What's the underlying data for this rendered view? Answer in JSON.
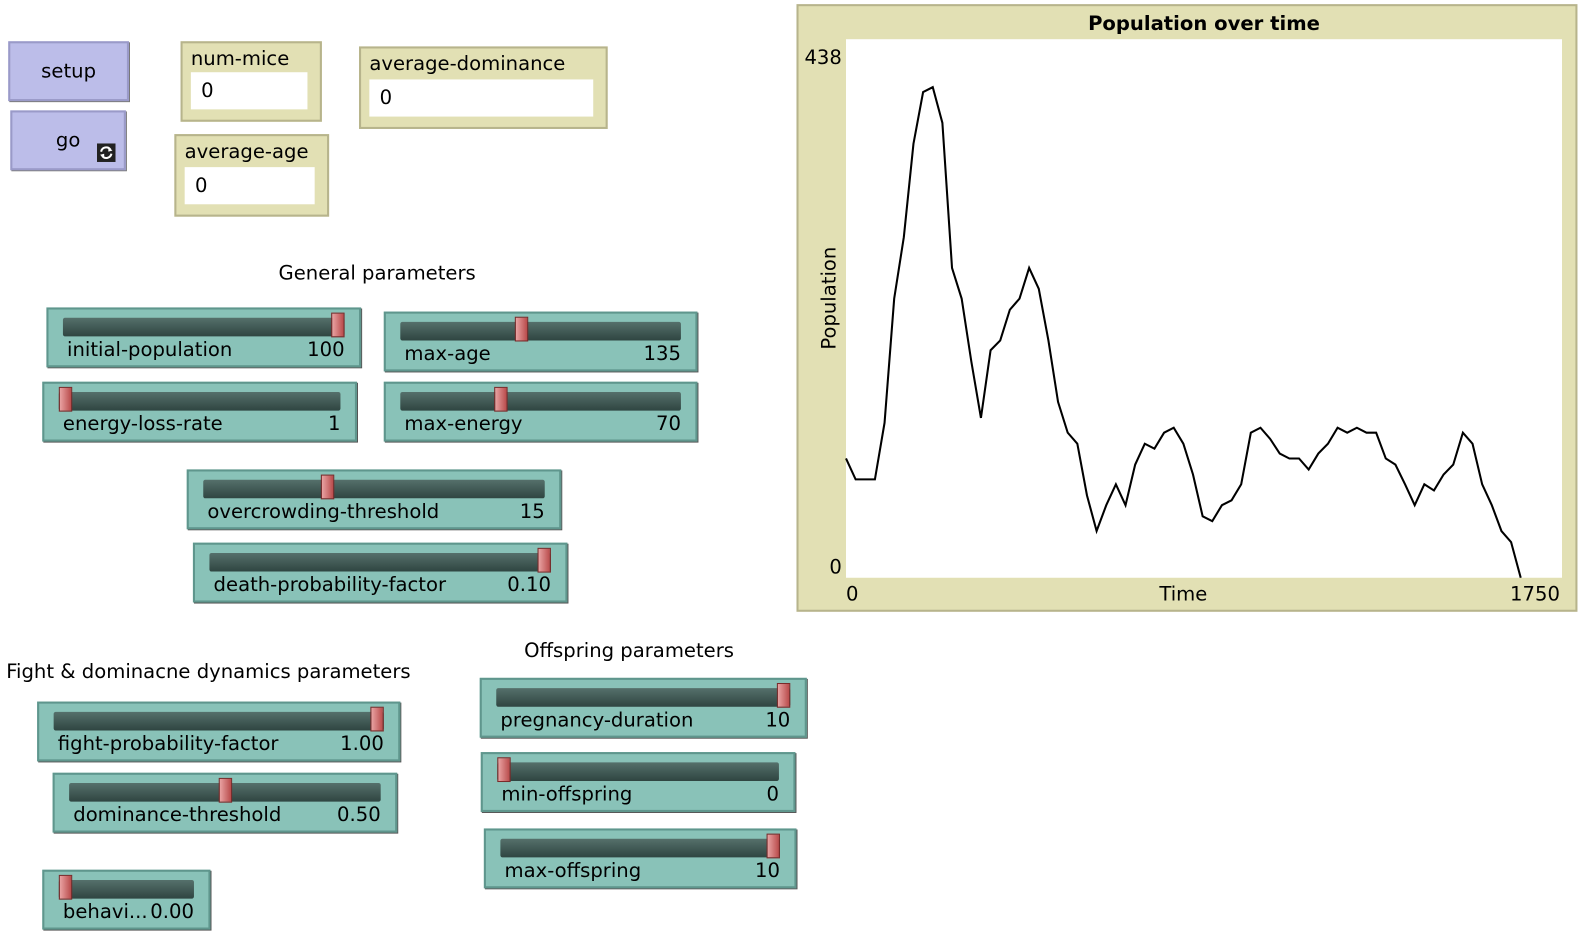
{
  "buttons": [
    {
      "label": "setup"
    },
    {
      "label": "go"
    }
  ],
  "monitors": [
    {
      "label": "num-mice",
      "value": "0"
    },
    {
      "label": "average-age",
      "value": "0"
    },
    {
      "label": "average-dominance",
      "value": "0"
    }
  ],
  "notes": [
    "General parameters",
    "Fight & dominacne dynamics parameters",
    "Offspring parameters"
  ],
  "sliders": [
    {
      "label": "initial-population",
      "value": "100"
    },
    {
      "label": "max-age",
      "value": "135"
    },
    {
      "label": "energy-loss-rate",
      "value": "1"
    },
    {
      "label": "max-energy",
      "value": "70"
    },
    {
      "label": "overcrowding-threshold",
      "value": "15"
    },
    {
      "label": "death-probability-factor",
      "value": "0.10"
    },
    {
      "label": "fight-probability-factor",
      "value": "1.00"
    },
    {
      "label": "dominance-threshold",
      "value": "0.50"
    },
    {
      "label": "behavi...",
      "value": "0.00"
    },
    {
      "label": "pregnancy-duration",
      "value": "10"
    },
    {
      "label": "min-offspring",
      "value": "0"
    },
    {
      "label": "max-offspring",
      "value": "10"
    }
  ],
  "chart_data": {
    "type": "line",
    "title": "Population over time",
    "x_label": "Time",
    "y_label": "Population",
    "color": "#000000",
    "x": [
      0,
      25,
      50,
      75,
      100,
      125,
      150,
      175,
      200,
      225,
      250,
      275,
      300,
      325,
      350,
      375,
      400,
      425,
      450,
      475,
      500,
      525,
      550,
      575,
      600,
      625,
      650,
      675,
      700,
      725,
      750,
      775,
      800,
      825,
      850,
      875,
      900,
      925,
      950,
      975,
      1000,
      1025,
      1050,
      1075,
      1100,
      1125,
      1150,
      1175,
      1200,
      1225,
      1250,
      1275,
      1300,
      1325,
      1350,
      1375,
      1400,
      1425,
      1450,
      1475,
      1500,
      1525,
      1550,
      1575,
      1600,
      1625,
      1650,
      1675,
      1700,
      1725,
      1750
    ],
    "values": [
      97,
      80,
      80,
      80,
      126,
      227,
      277,
      353,
      395,
      399,
      370,
      252,
      227,
      176,
      130,
      185,
      193,
      218,
      227,
      252,
      235,
      193,
      143,
      118,
      109,
      67,
      38,
      59,
      76,
      59,
      92,
      109,
      105,
      118,
      122,
      109,
      84,
      50,
      46,
      59,
      63,
      76,
      118,
      122,
      113,
      101,
      97,
      97,
      88,
      101,
      109,
      122,
      118,
      122,
      118,
      118,
      97,
      92,
      76,
      59,
      76,
      71,
      84,
      92,
      118,
      109,
      76,
      59,
      38,
      29,
      0
    ],
    "xlim": [
      0,
      1750
    ],
    "ylim": [
      0,
      438
    ],
    "xticks": [
      0,
      1750
    ],
    "yticks": [
      0,
      438
    ]
  }
}
